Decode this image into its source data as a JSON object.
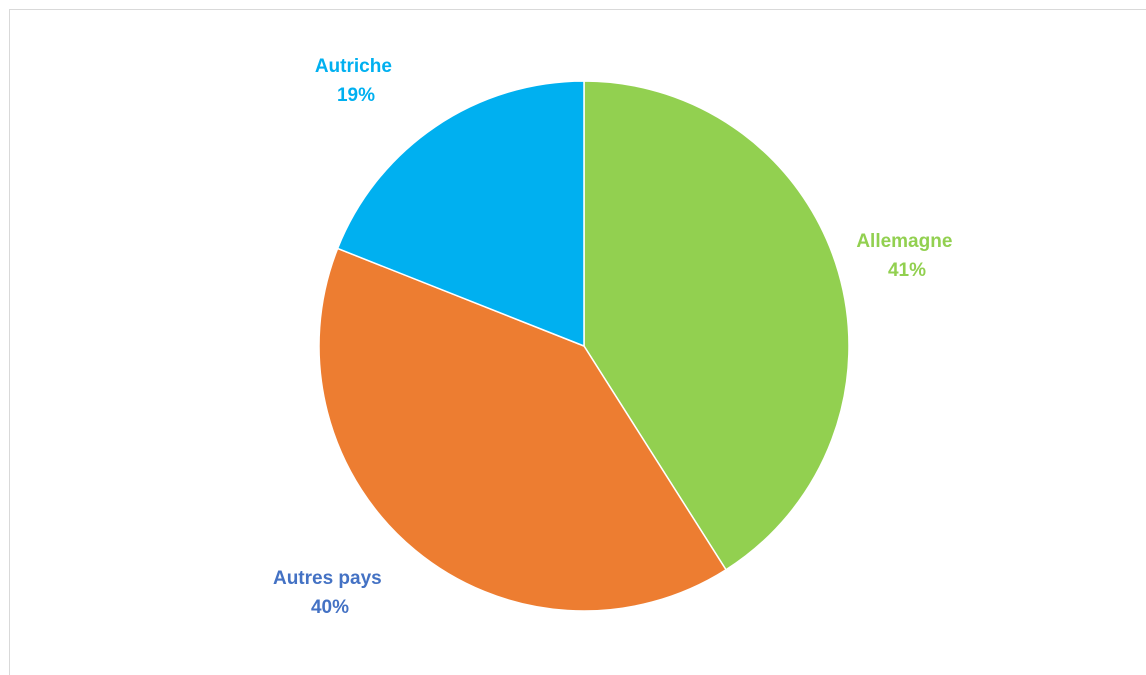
{
  "chart_data": {
    "type": "pie",
    "title": "",
    "slices": [
      {
        "label": "Allemagne",
        "value": 41,
        "display": "41%",
        "color": "#92d050"
      },
      {
        "label": "Autres pays",
        "value": 40,
        "display": "40%",
        "color": "#ed7d31"
      },
      {
        "label": "Autriche",
        "value": 19,
        "display": "19%",
        "color": "#00b0f0"
      }
    ],
    "label_colors": {
      "Allemagne": "#92d050",
      "Autres pays": "#4472c4",
      "Autriche": "#00b0f0"
    },
    "start_angle_deg": 0,
    "direction": "clockwise",
    "legend": "none",
    "data_labels": "outside"
  }
}
